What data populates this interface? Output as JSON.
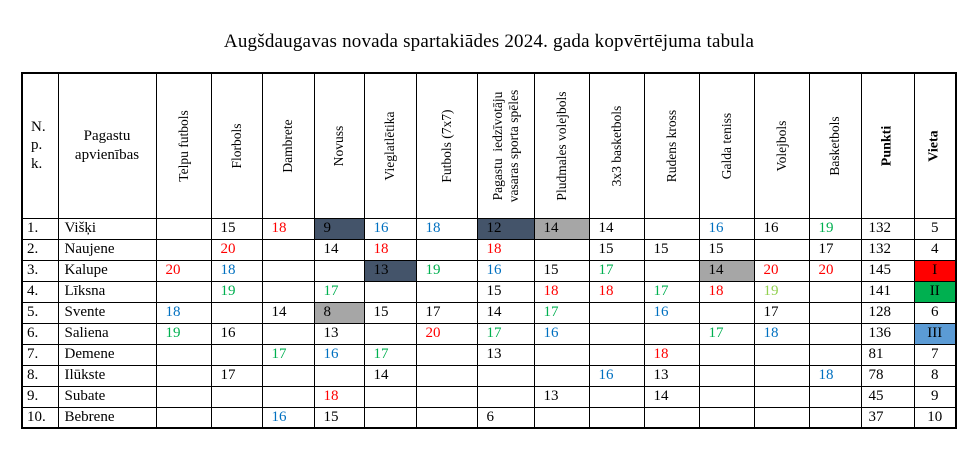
{
  "title": "Augšdaugavas novada spartakiādes 2024. gada kopvērtējuma tabula",
  "colors": {
    "red": "#FF0000",
    "blue": "#0070C0",
    "green": "#00B050",
    "lightGreen": "#92D050",
    "slate": "#44546A",
    "gray": "#A6A6A6",
    "place1": "#FF0000",
    "place2": "#00B050",
    "place3": "#5B9BD5"
  },
  "table": {
    "corner_header": "N.\np.\nk.",
    "name_header": "Pagastu\napvienības",
    "sport_headers": [
      "Telpu futbols",
      "Florbols",
      "Dambrete",
      "Novuss",
      "Vieglatlētika",
      "Futbols (7x7)",
      "Pagastu  iedzīvotāju\nvasaras sporta spēles",
      "Pludmales volejbols",
      "3x3 basketbols",
      "Rudens kross",
      "Galda teniss",
      "Volejbols",
      "Basketbols"
    ],
    "points_header": "Punkti",
    "place_header": "Vieta",
    "rows": [
      {
        "npk": "1.",
        "name": "Višķi",
        "cells": [
          {
            "v": ""
          },
          {
            "v": "15"
          },
          {
            "v": "18",
            "fg": "red"
          },
          {
            "v": "9",
            "bg": "slate"
          },
          {
            "v": "16",
            "fg": "blue"
          },
          {
            "v": "18",
            "fg": "blue"
          },
          {
            "v": "12",
            "bg": "slate"
          },
          {
            "v": "14",
            "bg": "gray"
          },
          {
            "v": "14"
          },
          {
            "v": ""
          },
          {
            "v": "16",
            "fg": "blue"
          },
          {
            "v": "16"
          },
          {
            "v": "19",
            "fg": "green"
          }
        ],
        "points": "132",
        "place": {
          "v": "5"
        }
      },
      {
        "npk": "2.",
        "name": "Naujene",
        "cells": [
          {
            "v": ""
          },
          {
            "v": "20",
            "fg": "red"
          },
          {
            "v": ""
          },
          {
            "v": "14"
          },
          {
            "v": "18",
            "fg": "red"
          },
          {
            "v": ""
          },
          {
            "v": "18",
            "fg": "red"
          },
          {
            "v": ""
          },
          {
            "v": "15"
          },
          {
            "v": "15"
          },
          {
            "v": "15"
          },
          {
            "v": ""
          },
          {
            "v": "17"
          }
        ],
        "points": "132",
        "place": {
          "v": "4"
        }
      },
      {
        "npk": "3.",
        "name": "Kalupe",
        "cells": [
          {
            "v": "20",
            "fg": "red"
          },
          {
            "v": "18",
            "fg": "blue"
          },
          {
            "v": ""
          },
          {
            "v": ""
          },
          {
            "v": "13",
            "bg": "slate"
          },
          {
            "v": "19",
            "fg": "green"
          },
          {
            "v": "16",
            "fg": "blue"
          },
          {
            "v": "15"
          },
          {
            "v": "17",
            "fg": "green"
          },
          {
            "v": ""
          },
          {
            "v": "14",
            "bg": "gray"
          },
          {
            "v": "20",
            "fg": "red"
          },
          {
            "v": "20",
            "fg": "red"
          }
        ],
        "points": "145",
        "place": {
          "v": "I",
          "bg": "place1"
        }
      },
      {
        "npk": "4.",
        "name": "Līksna",
        "cells": [
          {
            "v": ""
          },
          {
            "v": "19",
            "fg": "green"
          },
          {
            "v": ""
          },
          {
            "v": "17",
            "fg": "green"
          },
          {
            "v": ""
          },
          {
            "v": ""
          },
          {
            "v": "15"
          },
          {
            "v": "18",
            "fg": "red"
          },
          {
            "v": "18",
            "fg": "red"
          },
          {
            "v": "17",
            "fg": "green"
          },
          {
            "v": "18",
            "fg": "red"
          },
          {
            "v": "19",
            "fg": "lightGreen"
          },
          {
            "v": ""
          }
        ],
        "points": "141",
        "place": {
          "v": "II",
          "bg": "place2"
        }
      },
      {
        "npk": "5.",
        "name": "Svente",
        "cells": [
          {
            "v": "18",
            "fg": "blue"
          },
          {
            "v": ""
          },
          {
            "v": "14"
          },
          {
            "v": "8",
            "bg": "gray"
          },
          {
            "v": "15"
          },
          {
            "v": "17"
          },
          {
            "v": "14"
          },
          {
            "v": "17",
            "fg": "green"
          },
          {
            "v": ""
          },
          {
            "v": "16",
            "fg": "blue"
          },
          {
            "v": ""
          },
          {
            "v": "17"
          },
          {
            "v": ""
          }
        ],
        "points": "128",
        "place": {
          "v": "6"
        }
      },
      {
        "npk": "6.",
        "name": "Saliena",
        "cells": [
          {
            "v": "19",
            "fg": "green"
          },
          {
            "v": "16"
          },
          {
            "v": ""
          },
          {
            "v": "13"
          },
          {
            "v": ""
          },
          {
            "v": "20",
            "fg": "red"
          },
          {
            "v": "17",
            "fg": "green"
          },
          {
            "v": "16",
            "fg": "blue"
          },
          {
            "v": ""
          },
          {
            "v": ""
          },
          {
            "v": "17",
            "fg": "green"
          },
          {
            "v": "18",
            "fg": "blue"
          },
          {
            "v": ""
          }
        ],
        "points": "136",
        "place": {
          "v": "III",
          "bg": "place3"
        }
      },
      {
        "npk": "7.",
        "name": "Demene",
        "cells": [
          {
            "v": ""
          },
          {
            "v": ""
          },
          {
            "v": "17",
            "fg": "green"
          },
          {
            "v": "16",
            "fg": "blue"
          },
          {
            "v": "17",
            "fg": "green"
          },
          {
            "v": ""
          },
          {
            "v": "13"
          },
          {
            "v": ""
          },
          {
            "v": ""
          },
          {
            "v": "18",
            "fg": "red"
          },
          {
            "v": ""
          },
          {
            "v": ""
          },
          {
            "v": ""
          }
        ],
        "points": "81",
        "place": {
          "v": "7"
        }
      },
      {
        "npk": "8.",
        "name": "Ilūkste",
        "cells": [
          {
            "v": ""
          },
          {
            "v": "17"
          },
          {
            "v": ""
          },
          {
            "v": ""
          },
          {
            "v": "14"
          },
          {
            "v": ""
          },
          {
            "v": ""
          },
          {
            "v": ""
          },
          {
            "v": "16",
            "fg": "blue"
          },
          {
            "v": "13"
          },
          {
            "v": ""
          },
          {
            "v": ""
          },
          {
            "v": "18",
            "fg": "blue"
          }
        ],
        "points": "78",
        "place": {
          "v": "8"
        }
      },
      {
        "npk": "9.",
        "name": "Subate",
        "cells": [
          {
            "v": ""
          },
          {
            "v": ""
          },
          {
            "v": ""
          },
          {
            "v": "18",
            "fg": "red"
          },
          {
            "v": ""
          },
          {
            "v": ""
          },
          {
            "v": ""
          },
          {
            "v": "13"
          },
          {
            "v": ""
          },
          {
            "v": "14"
          },
          {
            "v": ""
          },
          {
            "v": ""
          },
          {
            "v": ""
          }
        ],
        "points": "45",
        "place": {
          "v": "9"
        }
      },
      {
        "npk": "10.",
        "name": "Bebrene",
        "cells": [
          {
            "v": ""
          },
          {
            "v": ""
          },
          {
            "v": "16",
            "fg": "blue"
          },
          {
            "v": "15"
          },
          {
            "v": ""
          },
          {
            "v": ""
          },
          {
            "v": "6"
          },
          {
            "v": ""
          },
          {
            "v": ""
          },
          {
            "v": ""
          },
          {
            "v": ""
          },
          {
            "v": ""
          },
          {
            "v": ""
          }
        ],
        "points": "37",
        "place": {
          "v": "10"
        }
      }
    ]
  }
}
